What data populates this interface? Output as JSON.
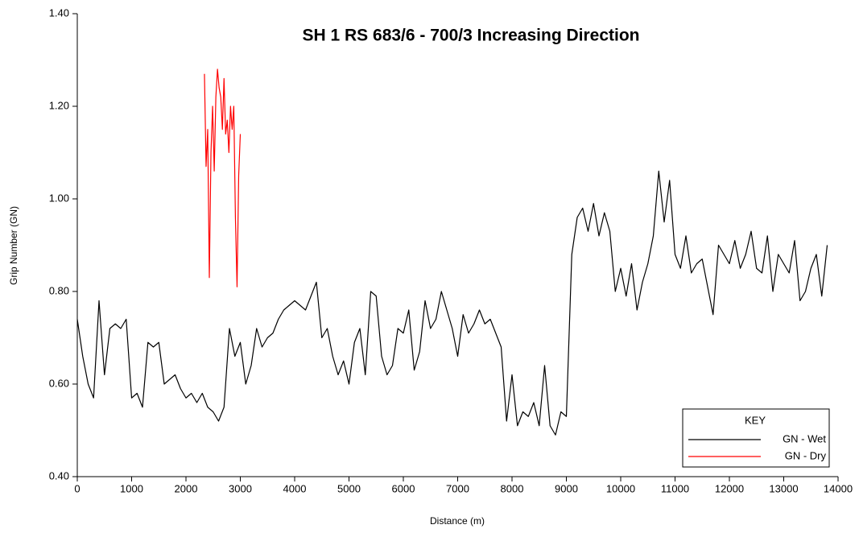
{
  "chart_data": {
    "type": "line",
    "title": "SH 1 RS 683/6 - 700/3 Increasing Direction",
    "x_label": "Distance (m)",
    "y_label": "Grip Number (GN)",
    "legend_title": "KEY",
    "legend_position": "lower right",
    "xlim": [
      0,
      14000
    ],
    "xticks": [
      0,
      1000,
      2000,
      3000,
      4000,
      5000,
      6000,
      7000,
      8000,
      9000,
      10000,
      11000,
      12000,
      13000,
      14000
    ],
    "ylim": [
      0.4,
      1.4
    ],
    "yticks": [
      {
        "value": 0.4,
        "label": "0.40"
      },
      {
        "value": 0.6,
        "label": "0.60"
      },
      {
        "value": 0.8,
        "label": "0.80"
      },
      {
        "value": 1.0,
        "label": "1.00"
      },
      {
        "value": 1.2,
        "label": "1.20"
      },
      {
        "value": 1.4,
        "label": "1.40"
      }
    ],
    "series": [
      {
        "name": "GN - Wet",
        "color": "#000000",
        "x": [
          0,
          100,
          200,
          300,
          400,
          500,
          600,
          700,
          800,
          900,
          1000,
          1100,
          1200,
          1300,
          1400,
          1500,
          1600,
          1700,
          1800,
          1900,
          2000,
          2100,
          2200,
          2300,
          2400,
          2500,
          2600,
          2700,
          2800,
          2900,
          3000,
          3100,
          3200,
          3300,
          3400,
          3500,
          3600,
          3700,
          3800,
          3900,
          4000,
          4100,
          4200,
          4300,
          4400,
          4500,
          4600,
          4700,
          4800,
          4900,
          5000,
          5100,
          5200,
          5300,
          5400,
          5500,
          5600,
          5700,
          5800,
          5900,
          6000,
          6100,
          6200,
          6300,
          6400,
          6500,
          6600,
          6700,
          6800,
          6900,
          7000,
          7100,
          7200,
          7300,
          7400,
          7500,
          7600,
          7700,
          7800,
          7900,
          8000,
          8100,
          8200,
          8300,
          8400,
          8500,
          8600,
          8700,
          8800,
          8900,
          9000,
          9100,
          9200,
          9300,
          9400,
          9500,
          9600,
          9700,
          9800,
          9900,
          10000,
          10100,
          10200,
          10300,
          10400,
          10500,
          10600,
          10700,
          10800,
          10900,
          11000,
          11100,
          11200,
          11300,
          11400,
          11500,
          11600,
          11700,
          11800,
          11900,
          12000,
          12100,
          12200,
          12300,
          12400,
          12500,
          12600,
          12700,
          12800,
          12900,
          13000,
          13100,
          13200,
          13300,
          13400,
          13500,
          13600,
          13700,
          13800
        ],
        "values": [
          0.74,
          0.66,
          0.6,
          0.57,
          0.78,
          0.62,
          0.72,
          0.73,
          0.72,
          0.74,
          0.57,
          0.58,
          0.55,
          0.69,
          0.68,
          0.69,
          0.6,
          0.61,
          0.62,
          0.59,
          0.57,
          0.58,
          0.56,
          0.58,
          0.55,
          0.54,
          0.52,
          0.55,
          0.72,
          0.66,
          0.69,
          0.6,
          0.64,
          0.72,
          0.68,
          0.7,
          0.71,
          0.74,
          0.76,
          0.77,
          0.78,
          0.77,
          0.76,
          0.79,
          0.82,
          0.7,
          0.72,
          0.66,
          0.62,
          0.65,
          0.6,
          0.69,
          0.72,
          0.62,
          0.8,
          0.79,
          0.66,
          0.62,
          0.64,
          0.72,
          0.71,
          0.76,
          0.63,
          0.67,
          0.78,
          0.72,
          0.74,
          0.8,
          0.76,
          0.72,
          0.66,
          0.75,
          0.71,
          0.73,
          0.76,
          0.73,
          0.74,
          0.71,
          0.68,
          0.52,
          0.62,
          0.51,
          0.54,
          0.53,
          0.56,
          0.51,
          0.64,
          0.51,
          0.49,
          0.54,
          0.53,
          0.88,
          0.96,
          0.98,
          0.93,
          0.99,
          0.92,
          0.97,
          0.93,
          0.8,
          0.85,
          0.79,
          0.86,
          0.76,
          0.82,
          0.86,
          0.92,
          1.06,
          0.95,
          1.04,
          0.88,
          0.85,
          0.92,
          0.84,
          0.86,
          0.87,
          0.81,
          0.75,
          0.9,
          0.88,
          0.86,
          0.91,
          0.85,
          0.88,
          0.93,
          0.85,
          0.84,
          0.92,
          0.8,
          0.88,
          0.86,
          0.84,
          0.91,
          0.78,
          0.8,
          0.85,
          0.88,
          0.79,
          0.9
        ]
      },
      {
        "name": "GN - Dry",
        "color": "#ff0000",
        "x": [
          2340,
          2370,
          2400,
          2430,
          2460,
          2490,
          2520,
          2550,
          2580,
          2610,
          2640,
          2670,
          2700,
          2730,
          2760,
          2790,
          2820,
          2850,
          2880,
          2910,
          2940,
          2970,
          3000
        ],
        "values": [
          1.27,
          1.07,
          1.15,
          0.83,
          1.1,
          1.2,
          1.06,
          1.22,
          1.28,
          1.24,
          1.22,
          1.15,
          1.26,
          1.14,
          1.17,
          1.1,
          1.2,
          1.15,
          1.2,
          0.96,
          0.81,
          1.05,
          1.14
        ]
      }
    ]
  }
}
